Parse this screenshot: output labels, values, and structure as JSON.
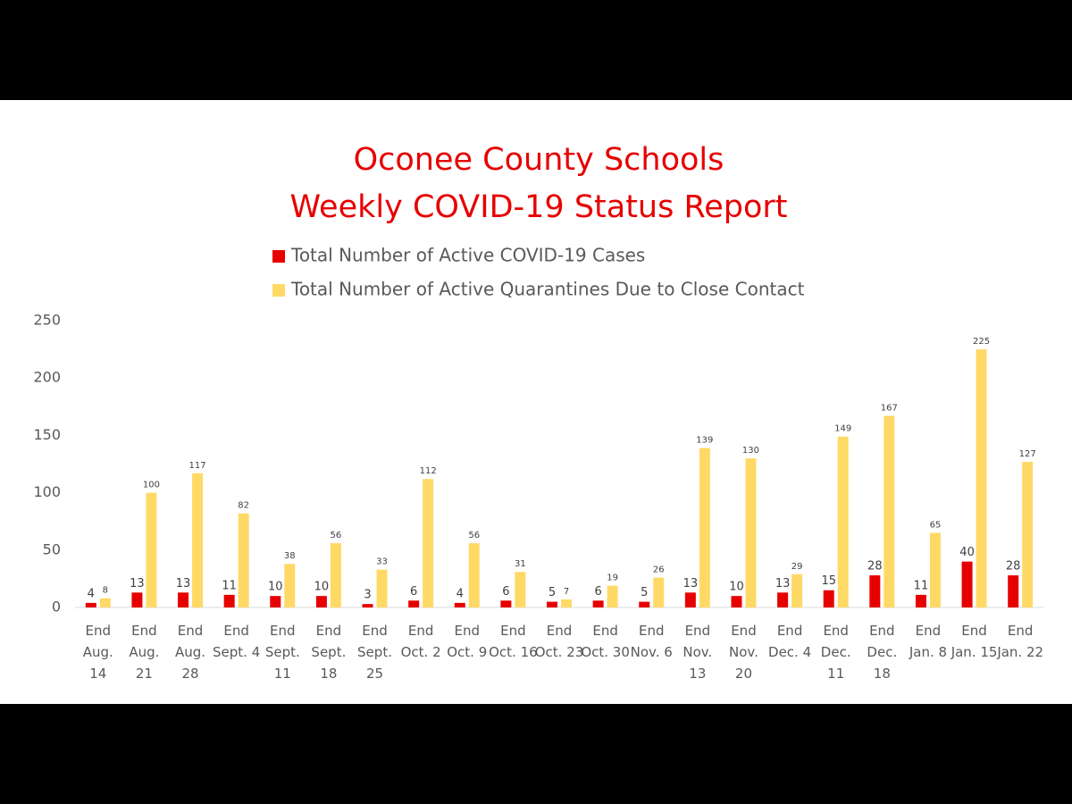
{
  "chart_data": {
    "type": "bar",
    "title": [
      "Oconee County Schools",
      "Weekly COVID-19 Status Report"
    ],
    "categories": [
      "End Aug. 14",
      "End Aug. 21",
      "End Aug. 28",
      "End Sept. 4",
      "End Sept. 11",
      "End Sept. 18",
      "End Sept. 25",
      "End Oct. 2",
      "End Oct. 9",
      "End Oct. 16",
      "End Oct. 23",
      "End Oct. 30",
      "End Nov. 6",
      "End Nov. 13",
      "End Nov. 20",
      "End Dec. 4",
      "End Dec. 11",
      "End Dec. 18",
      "End Jan. 8",
      "End Jan. 15",
      "End Jan. 22"
    ],
    "series": [
      {
        "name": "Total Number of Active COVID-19 Cases",
        "color": "#e60000",
        "values": [
          4,
          13,
          13,
          11,
          10,
          10,
          3,
          6,
          4,
          6,
          5,
          6,
          5,
          13,
          10,
          13,
          15,
          28,
          11,
          40,
          28
        ]
      },
      {
        "name": "Total Number of Active Quarantines Due to Close Contact",
        "color": "#ffd966",
        "values": [
          8,
          100,
          117,
          82,
          38,
          56,
          33,
          112,
          56,
          31,
          7,
          19,
          26,
          139,
          130,
          29,
          149,
          167,
          65,
          225,
          127
        ]
      }
    ],
    "ylim": [
      0,
      250
    ],
    "yticks": [
      0,
      50,
      100,
      150,
      200,
      250
    ],
    "grid": false
  }
}
